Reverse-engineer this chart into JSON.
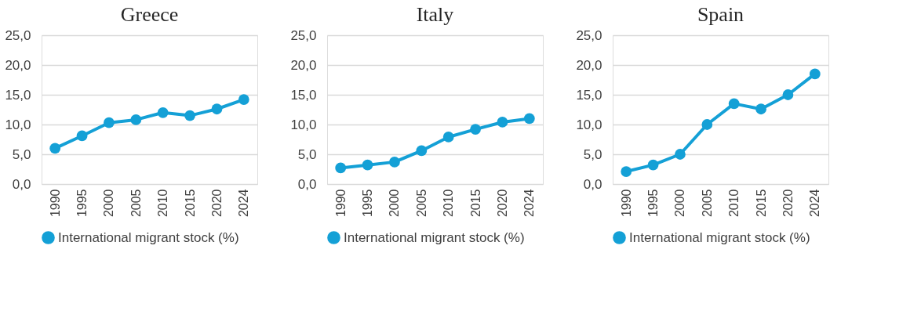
{
  "chart_data": [
    {
      "type": "line",
      "title": "Greece",
      "categories": [
        "1990",
        "1995",
        "2000",
        "2005",
        "2010",
        "2015",
        "2020",
        "2024"
      ],
      "series": [
        {
          "name": "International migrant stock (%)",
          "color": "#14a0d6",
          "values": [
            6.0,
            8.1,
            10.3,
            10.8,
            12.0,
            11.5,
            12.6,
            14.2
          ]
        }
      ],
      "ylim": [
        0,
        25
      ],
      "yticks": [
        {
          "value": 0,
          "label": "0,0"
        },
        {
          "value": 5,
          "label": "5,0"
        },
        {
          "value": 10,
          "label": "10,0"
        },
        {
          "value": 15,
          "label": "15,0"
        },
        {
          "value": 20,
          "label": "20,0"
        },
        {
          "value": 25,
          "label": "25,0"
        }
      ],
      "grid": "y",
      "legend": "bottom",
      "marker": "circle",
      "line_style": "solid"
    },
    {
      "type": "line",
      "title": "Italy",
      "categories": [
        "1990",
        "1995",
        "2000",
        "2005",
        "2010",
        "2015",
        "2020",
        "2024"
      ],
      "series": [
        {
          "name": "International migrant stock (%)",
          "color": "#14a0d6",
          "values": [
            2.7,
            3.2,
            3.7,
            5.6,
            7.9,
            9.2,
            10.4,
            11.0
          ]
        }
      ],
      "ylim": [
        0,
        25
      ],
      "yticks": [
        {
          "value": 0,
          "label": "0,0"
        },
        {
          "value": 5,
          "label": "5,0"
        },
        {
          "value": 10,
          "label": "10,0"
        },
        {
          "value": 15,
          "label": "15,0"
        },
        {
          "value": 20,
          "label": "20,0"
        },
        {
          "value": 25,
          "label": "25,0"
        }
      ],
      "grid": "y",
      "legend": "bottom",
      "marker": "circle",
      "line_style": "solid"
    },
    {
      "type": "line",
      "title": "Spain",
      "categories": [
        "1990",
        "1995",
        "2000",
        "2005",
        "2010",
        "2015",
        "2020",
        "2024"
      ],
      "series": [
        {
          "name": "International migrant stock (%)",
          "color": "#14a0d6",
          "values": [
            2.1,
            3.2,
            5.0,
            10.0,
            13.5,
            12.6,
            15.0,
            18.5
          ]
        }
      ],
      "ylim": [
        0,
        25
      ],
      "yticks": [
        {
          "value": 0,
          "label": "0,0"
        },
        {
          "value": 5,
          "label": "5,0"
        },
        {
          "value": 10,
          "label": "10,0"
        },
        {
          "value": 15,
          "label": "15,0"
        },
        {
          "value": 20,
          "label": "20,0"
        },
        {
          "value": 25,
          "label": "25,0"
        }
      ],
      "grid": "y",
      "legend": "bottom",
      "marker": "circle",
      "line_style": "solid"
    }
  ]
}
